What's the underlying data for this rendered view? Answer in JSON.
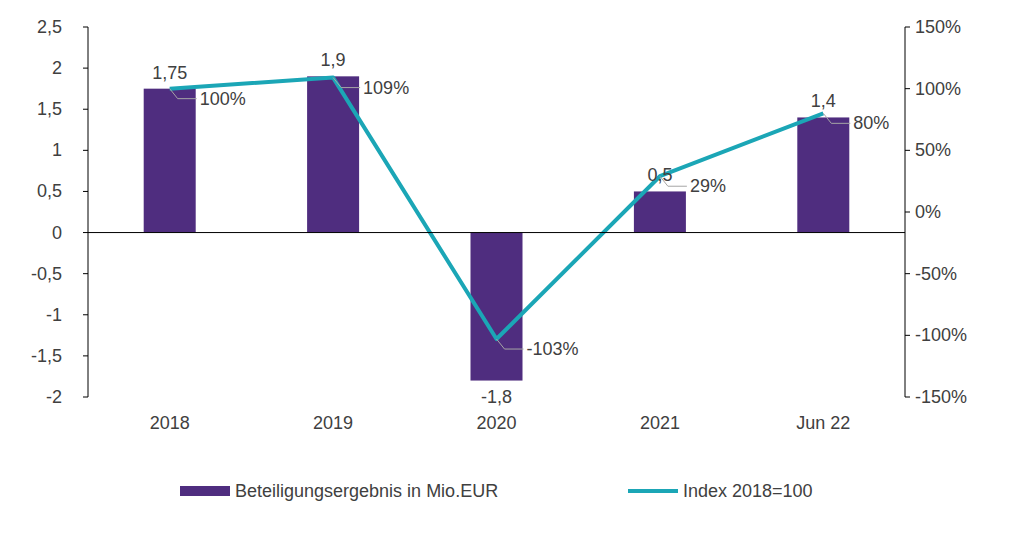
{
  "chart_data": {
    "type": "bar",
    "categories": [
      "2018",
      "2019",
      "2020",
      "2021",
      "Jun 22"
    ],
    "series": [
      {
        "name": "Beteiligungsergebnis in Mio.EUR",
        "type": "bar",
        "color": "#4f2d7f",
        "values": [
          1.75,
          1.9,
          -1.8,
          0.5,
          1.4
        ],
        "value_labels": [
          "1,75",
          "1,9",
          "-1,8",
          "0,5",
          "1,4"
        ],
        "data_labels": true
      },
      {
        "name": "Index 2018=100",
        "type": "line",
        "axis": "y2",
        "color": "#1ba6b6",
        "values": [
          100,
          109,
          -103,
          29,
          80
        ],
        "value_labels": [
          "100%",
          "109%",
          "-103%",
          "29%",
          "80%"
        ],
        "data_labels": true
      }
    ],
    "ylim": [
      -2,
      2.5
    ],
    "yticks": [
      {
        "value": 2.5,
        "label": "2,5"
      },
      2,
      {
        "value": 1.5,
        "label": "1,5"
      },
      1,
      {
        "value": 0.5,
        "label": "0,5"
      },
      0,
      {
        "value": -0.5,
        "label": "-0,5"
      },
      -1,
      {
        "value": -1.5,
        "label": "-1,5"
      },
      -2
    ],
    "y2lim": [
      -150,
      150
    ],
    "y2ticks": [
      {
        "value": 150,
        "label": "150%"
      },
      {
        "value": 100,
        "label": "100%"
      },
      {
        "value": 50,
        "label": "50%"
      },
      {
        "value": 0,
        "label": "0%"
      },
      {
        "value": -50,
        "label": "-50%"
      },
      {
        "value": -100,
        "label": "-100%"
      },
      {
        "value": -150,
        "label": "-150%"
      }
    ],
    "grid": false,
    "legend": "bottom"
  }
}
